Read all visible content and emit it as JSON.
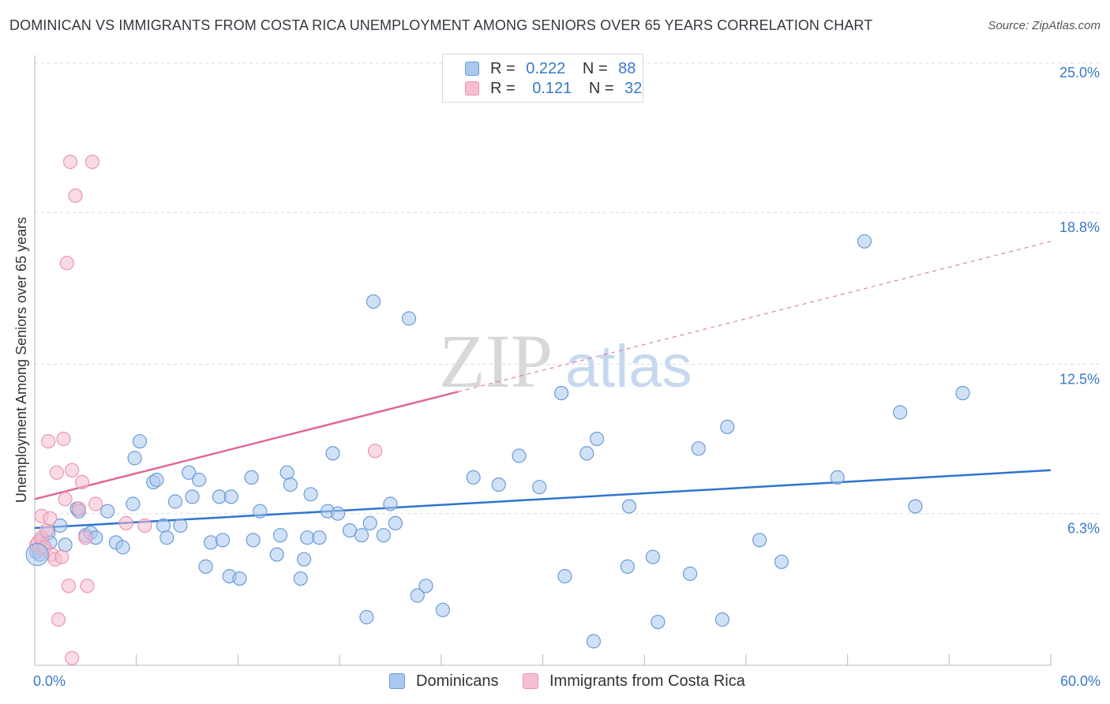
{
  "title": "DOMINICAN VS IMMIGRANTS FROM COSTA RICA UNEMPLOYMENT AMONG SENIORS OVER 65 YEARS CORRELATION CHART",
  "source": "Source: ZipAtlas.com",
  "watermark": {
    "zip": "ZIP",
    "atlas": "atlas"
  },
  "legend_stats": [
    {
      "r_label": "R =",
      "r_value": "0.222",
      "n_label": "N =",
      "n_value": "88"
    },
    {
      "r_label": "R =",
      "r_value": "0.121",
      "n_label": "N =",
      "n_value": "32"
    }
  ],
  "colors": {
    "dominicans_fill": "#a9c8f0",
    "dominicans_stroke": "#6b9bd6",
    "dominicans_line": "#2f74d0",
    "costa_rica_fill": "#f6bed0",
    "costa_rica_stroke": "#e896b2",
    "costa_rica_line": "#e0679a",
    "tick_label": "#3a78c9",
    "grid": "#d9d9d9"
  },
  "chart_data": {
    "type": "scatter",
    "title": "DOMINICAN VS IMMIGRANTS FROM COSTA RICA UNEMPLOYMENT AMONG SENIORS OVER 65 YEARS CORRELATION CHART",
    "xlabel": "",
    "ylabel": "Unemployment Among Seniors over 65 years",
    "xlim": [
      0,
      60
    ],
    "ylim": [
      0,
      25
    ],
    "x_tick_labels": [
      "0.0%",
      "60.0%"
    ],
    "y_ticks": [
      6.3,
      12.5,
      18.8,
      25.0
    ],
    "y_tick_labels": [
      "6.3%",
      "12.5%",
      "18.8%",
      "25.0%"
    ],
    "grid": true,
    "legend_position": "bottom-center",
    "series": [
      {
        "name": "Dominicans",
        "r": 0.222,
        "n": 88,
        "trend": {
          "x": [
            0,
            60
          ],
          "y": [
            5.7,
            8.1
          ],
          "dashed_after": null
        },
        "points": [
          [
            0.2,
            4.8
          ],
          [
            0.4,
            5.2
          ],
          [
            0.5,
            5.0
          ],
          [
            0.6,
            4.9
          ],
          [
            0.8,
            5.5
          ],
          [
            0.9,
            5.1
          ],
          [
            1.5,
            5.8
          ],
          [
            1.8,
            5.0
          ],
          [
            2.5,
            6.5
          ],
          [
            2.6,
            6.4
          ],
          [
            3.0,
            5.4
          ],
          [
            3.3,
            5.5
          ],
          [
            3.6,
            5.3
          ],
          [
            4.3,
            6.4
          ],
          [
            4.8,
            5.1
          ],
          [
            5.2,
            4.9
          ],
          [
            5.8,
            6.7
          ],
          [
            5.9,
            8.6
          ],
          [
            6.2,
            9.3
          ],
          [
            7.0,
            7.6
          ],
          [
            7.2,
            7.7
          ],
          [
            7.6,
            5.8
          ],
          [
            7.8,
            5.3
          ],
          [
            8.3,
            6.8
          ],
          [
            8.6,
            5.8
          ],
          [
            9.1,
            8.0
          ],
          [
            9.3,
            7.0
          ],
          [
            9.7,
            7.7
          ],
          [
            10.1,
            4.1
          ],
          [
            10.4,
            5.1
          ],
          [
            10.9,
            7.0
          ],
          [
            11.1,
            5.2
          ],
          [
            11.6,
            7.0
          ],
          [
            11.5,
            3.7
          ],
          [
            12.1,
            3.6
          ],
          [
            12.8,
            7.8
          ],
          [
            12.9,
            5.2
          ],
          [
            13.3,
            6.4
          ],
          [
            14.3,
            4.6
          ],
          [
            14.5,
            5.4
          ],
          [
            14.9,
            8.0
          ],
          [
            15.1,
            7.5
          ],
          [
            15.7,
            3.6
          ],
          [
            15.9,
            4.4
          ],
          [
            16.1,
            5.3
          ],
          [
            16.3,
            7.1
          ],
          [
            16.8,
            5.3
          ],
          [
            17.3,
            6.4
          ],
          [
            17.6,
            8.8
          ],
          [
            17.9,
            6.3
          ],
          [
            18.6,
            5.6
          ],
          [
            19.3,
            5.4
          ],
          [
            19.6,
            2.0
          ],
          [
            19.8,
            5.9
          ],
          [
            20.0,
            15.1
          ],
          [
            20.6,
            5.4
          ],
          [
            21.0,
            6.7
          ],
          [
            21.3,
            5.9
          ],
          [
            22.1,
            14.4
          ],
          [
            22.6,
            2.9
          ],
          [
            23.1,
            3.3
          ],
          [
            24.1,
            2.3
          ],
          [
            25.9,
            7.8
          ],
          [
            27.4,
            7.5
          ],
          [
            28.6,
            8.7
          ],
          [
            29.8,
            7.4
          ],
          [
            31.1,
            11.3
          ],
          [
            31.3,
            3.7
          ],
          [
            32.6,
            8.8
          ],
          [
            33.0,
            1.0
          ],
          [
            33.2,
            9.4
          ],
          [
            35.1,
            6.6
          ],
          [
            35.0,
            4.1
          ],
          [
            36.5,
            4.5
          ],
          [
            36.8,
            1.8
          ],
          [
            38.7,
            3.8
          ],
          [
            39.2,
            9.0
          ],
          [
            40.6,
            1.9
          ],
          [
            40.9,
            9.9
          ],
          [
            42.8,
            5.2
          ],
          [
            44.1,
            4.3
          ],
          [
            47.4,
            7.8
          ],
          [
            49.0,
            17.6
          ],
          [
            51.1,
            10.5
          ],
          [
            52.0,
            6.6
          ],
          [
            54.8,
            11.3
          ],
          [
            0.1,
            4.7
          ],
          [
            0.3,
            4.6
          ]
        ]
      },
      {
        "name": "Immigrants from Costa Rica",
        "r": 0.121,
        "n": 32,
        "trend": {
          "x": [
            0,
            60
          ],
          "y": [
            6.9,
            17.6
          ],
          "solid_until_x": 25
        },
        "points": [
          [
            0.1,
            5.0
          ],
          [
            0.2,
            5.1
          ],
          [
            0.3,
            4.9
          ],
          [
            0.4,
            5.3
          ],
          [
            0.4,
            6.2
          ],
          [
            0.5,
            4.8
          ],
          [
            0.6,
            4.9
          ],
          [
            0.7,
            5.6
          ],
          [
            0.8,
            9.3
          ],
          [
            0.9,
            6.1
          ],
          [
            1.0,
            4.6
          ],
          [
            1.2,
            4.4
          ],
          [
            1.3,
            8.0
          ],
          [
            1.4,
            1.9
          ],
          [
            1.6,
            4.5
          ],
          [
            1.7,
            9.4
          ],
          [
            1.8,
            6.9
          ],
          [
            1.9,
            16.7
          ],
          [
            2.0,
            3.3
          ],
          [
            2.1,
            20.9
          ],
          [
            2.2,
            8.1
          ],
          [
            2.4,
            19.5
          ],
          [
            2.6,
            6.5
          ],
          [
            2.8,
            7.6
          ],
          [
            3.0,
            5.3
          ],
          [
            3.1,
            3.3
          ],
          [
            3.4,
            20.9
          ],
          [
            3.6,
            6.7
          ],
          [
            5.4,
            5.9
          ],
          [
            6.5,
            5.8
          ],
          [
            20.1,
            8.9
          ],
          [
            2.2,
            0.3
          ]
        ]
      }
    ]
  },
  "bottom_legend": [
    {
      "label": "Dominicans"
    },
    {
      "label": "Immigrants from Costa Rica"
    }
  ]
}
